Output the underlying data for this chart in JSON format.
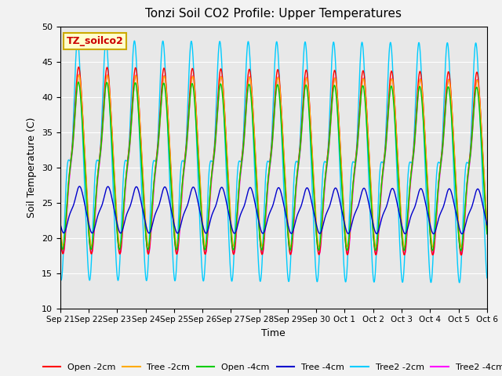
{
  "title": "Tonzi Soil CO2 Profile: Upper Temperatures",
  "xlabel": "Time",
  "ylabel": "Soil Temperature (C)",
  "ylim": [
    10,
    50
  ],
  "background_color": "#e8e8e8",
  "fig_bg_color": "#f2f2f2",
  "label_box": "TZ_soilco2",
  "series_colors": {
    "open2": "#ff0000",
    "tree2": "#ffaa00",
    "open4": "#00cc00",
    "tree4": "#0000cc",
    "t2_2cm": "#00ccff",
    "t2_4cm": "#ff00ff"
  },
  "legend_labels": [
    "Open -2cm",
    "Tree -2cm",
    "Open -4cm",
    "Tree -4cm",
    "Tree2 -2cm",
    "Tree2 -4cm"
  ],
  "xtick_labels": [
    "Sep 21",
    "Sep 22",
    "Sep 23",
    "Sep 24",
    "Sep 25",
    "Sep 26",
    "Sep 27",
    "Sep 28",
    "Sep 29",
    "Sep 30",
    "Oct 1",
    "Oct 2",
    "Oct 3",
    "Oct 4",
    "Oct 5",
    "Oct 6"
  ],
  "ytick_labels": [
    10,
    15,
    20,
    25,
    30,
    35,
    40,
    45,
    50
  ],
  "n_days": 15,
  "pts_per_day": 144
}
